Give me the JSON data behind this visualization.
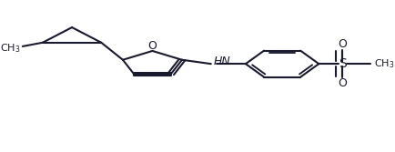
{
  "bg_color": "#ffffff",
  "line_color": "#1a1a2e",
  "line_width": 1.5,
  "font_size": 9,
  "atoms": {
    "O_furan": [
      0.48,
      0.52
    ],
    "N": [
      0.585,
      0.62
    ],
    "S": [
      0.82,
      0.62
    ],
    "HN_label": "HN",
    "O_label": "O",
    "S_label": "S"
  }
}
